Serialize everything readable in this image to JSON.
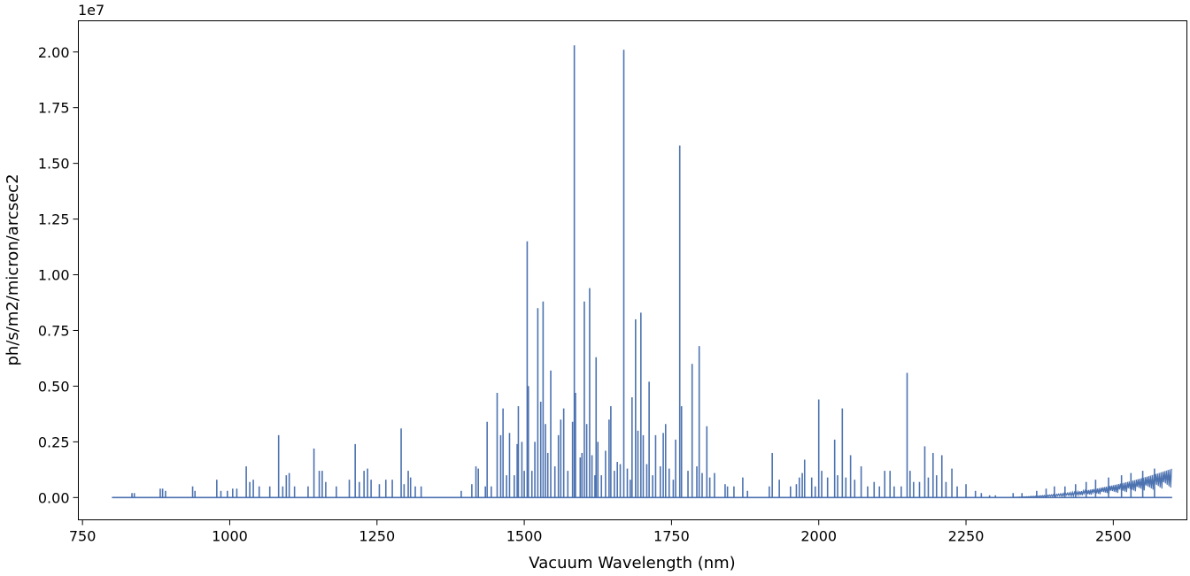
{
  "chart_data": {
    "type": "line",
    "title": "",
    "xlabel": "Vacuum Wavelength (nm)",
    "ylabel": "ph/s/m2/micron/arcsec2",
    "y_offset_label": "1e7",
    "y_scale_factor": 10000000,
    "xlim": [
      743,
      2625
    ],
    "ylim": [
      -0.1,
      2.14
    ],
    "x_ticks": [
      750,
      1000,
      1250,
      1500,
      1750,
      2000,
      2250,
      2500
    ],
    "x_tick_labels": [
      "750",
      "1000",
      "1250",
      "1500",
      "1750",
      "2000",
      "2250",
      "2500"
    ],
    "y_ticks": [
      0.0,
      0.25,
      0.5,
      0.75,
      1.0,
      1.25,
      1.5,
      1.75,
      2.0
    ],
    "y_tick_labels": [
      "0.00",
      "0.25",
      "0.50",
      "0.75",
      "1.00",
      "1.25",
      "1.50",
      "1.75",
      "2.00"
    ],
    "grid": false,
    "series": [
      {
        "color": "#4c72b0",
        "x_range": [
          800,
          2600
        ],
        "emission_lines": [
          [
            834,
            0.02
          ],
          [
            838,
            0.02
          ],
          [
            882,
            0.04
          ],
          [
            886,
            0.04
          ],
          [
            891,
            0.03
          ],
          [
            937,
            0.05
          ],
          [
            941,
            0.03
          ],
          [
            978,
            0.08
          ],
          [
            985,
            0.03
          ],
          [
            996,
            0.03
          ],
          [
            1005,
            0.04
          ],
          [
            1012,
            0.04
          ],
          [
            1028,
            0.14
          ],
          [
            1034,
            0.07
          ],
          [
            1040,
            0.08
          ],
          [
            1050,
            0.05
          ],
          [
            1068,
            0.05
          ],
          [
            1083,
            0.28
          ],
          [
            1090,
            0.05
          ],
          [
            1096,
            0.1
          ],
          [
            1101,
            0.11
          ],
          [
            1110,
            0.05
          ],
          [
            1133,
            0.05
          ],
          [
            1143,
            0.22
          ],
          [
            1152,
            0.12
          ],
          [
            1157,
            0.12
          ],
          [
            1163,
            0.07
          ],
          [
            1181,
            0.05
          ],
          [
            1203,
            0.08
          ],
          [
            1213,
            0.24
          ],
          [
            1220,
            0.07
          ],
          [
            1228,
            0.12
          ],
          [
            1234,
            0.13
          ],
          [
            1240,
            0.08
          ],
          [
            1254,
            0.06
          ],
          [
            1265,
            0.08
          ],
          [
            1276,
            0.08
          ],
          [
            1291,
            0.31
          ],
          [
            1296,
            0.06
          ],
          [
            1303,
            0.12
          ],
          [
            1307,
            0.09
          ],
          [
            1315,
            0.05
          ],
          [
            1325,
            0.05
          ],
          [
            1393,
            0.03
          ],
          [
            1411,
            0.06
          ],
          [
            1418,
            0.14
          ],
          [
            1422,
            0.13
          ],
          [
            1434,
            0.05
          ],
          [
            1437,
            0.34
          ],
          [
            1444,
            0.05
          ],
          [
            1454,
            0.47
          ],
          [
            1460,
            0.28
          ],
          [
            1464,
            0.4
          ],
          [
            1470,
            0.1
          ],
          [
            1475,
            0.29
          ],
          [
            1483,
            0.1
          ],
          [
            1488,
            0.24
          ],
          [
            1490,
            0.41
          ],
          [
            1496,
            0.25
          ],
          [
            1500,
            0.12
          ],
          [
            1505,
            1.15
          ],
          [
            1507,
            0.5
          ],
          [
            1513,
            0.12
          ],
          [
            1518,
            0.25
          ],
          [
            1523,
            0.85
          ],
          [
            1528,
            0.43
          ],
          [
            1532,
            0.88
          ],
          [
            1536,
            0.33
          ],
          [
            1540,
            0.2
          ],
          [
            1545,
            0.57
          ],
          [
            1552,
            0.14
          ],
          [
            1558,
            0.28
          ],
          [
            1562,
            0.35
          ],
          [
            1567,
            0.4
          ],
          [
            1574,
            0.12
          ],
          [
            1582,
            0.34
          ],
          [
            1585,
            2.03
          ],
          [
            1587,
            0.47
          ],
          [
            1595,
            0.18
          ],
          [
            1598,
            0.2
          ],
          [
            1602,
            0.88
          ],
          [
            1606,
            0.33
          ],
          [
            1611,
            0.94
          ],
          [
            1615,
            0.19
          ],
          [
            1620,
            0.1
          ],
          [
            1622,
            0.63
          ],
          [
            1625,
            0.25
          ],
          [
            1631,
            0.1
          ],
          [
            1638,
            0.21
          ],
          [
            1644,
            0.35
          ],
          [
            1647,
            0.41
          ],
          [
            1653,
            0.12
          ],
          [
            1658,
            0.16
          ],
          [
            1663,
            0.15
          ],
          [
            1669,
            2.01
          ],
          [
            1675,
            0.13
          ],
          [
            1680,
            0.08
          ],
          [
            1683,
            0.45
          ],
          [
            1689,
            0.8
          ],
          [
            1693,
            0.3
          ],
          [
            1698,
            0.83
          ],
          [
            1702,
            0.28
          ],
          [
            1708,
            0.15
          ],
          [
            1712,
            0.52
          ],
          [
            1718,
            0.1
          ],
          [
            1723,
            0.28
          ],
          [
            1731,
            0.14
          ],
          [
            1736,
            0.29
          ],
          [
            1740,
            0.33
          ],
          [
            1746,
            0.13
          ],
          [
            1753,
            0.08
          ],
          [
            1757,
            0.26
          ],
          [
            1764,
            1.58
          ],
          [
            1767,
            0.41
          ],
          [
            1778,
            0.12
          ],
          [
            1785,
            0.6
          ],
          [
            1793,
            0.14
          ],
          [
            1797,
            0.68
          ],
          [
            1802,
            0.11
          ],
          [
            1810,
            0.32
          ],
          [
            1815,
            0.09
          ],
          [
            1823,
            0.11
          ],
          [
            1841,
            0.06
          ],
          [
            1845,
            0.05
          ],
          [
            1856,
            0.05
          ],
          [
            1871,
            0.09
          ],
          [
            1879,
            0.03
          ],
          [
            1916,
            0.05
          ],
          [
            1921,
            0.2
          ],
          [
            1933,
            0.08
          ],
          [
            1952,
            0.05
          ],
          [
            1962,
            0.06
          ],
          [
            1967,
            0.09
          ],
          [
            1972,
            0.11
          ],
          [
            1976,
            0.17
          ],
          [
            1988,
            0.09
          ],
          [
            1994,
            0.05
          ],
          [
            2000,
            0.44
          ],
          [
            2005,
            0.12
          ],
          [
            2015,
            0.09
          ],
          [
            2027,
            0.26
          ],
          [
            2032,
            0.1
          ],
          [
            2040,
            0.4
          ],
          [
            2046,
            0.09
          ],
          [
            2054,
            0.19
          ],
          [
            2061,
            0.08
          ],
          [
            2072,
            0.14
          ],
          [
            2083,
            0.05
          ],
          [
            2094,
            0.07
          ],
          [
            2103,
            0.05
          ],
          [
            2112,
            0.12
          ],
          [
            2121,
            0.12
          ],
          [
            2128,
            0.05
          ],
          [
            2140,
            0.05
          ],
          [
            2150,
            0.56
          ],
          [
            2155,
            0.12
          ],
          [
            2161,
            0.07
          ],
          [
            2171,
            0.07
          ],
          [
            2180,
            0.23
          ],
          [
            2186,
            0.09
          ],
          [
            2194,
            0.2
          ],
          [
            2200,
            0.1
          ],
          [
            2209,
            0.19
          ],
          [
            2216,
            0.07
          ],
          [
            2226,
            0.13
          ],
          [
            2235,
            0.05
          ],
          [
            2250,
            0.06
          ],
          [
            2266,
            0.03
          ],
          [
            2276,
            0.02
          ],
          [
            2290,
            0.01
          ],
          [
            2300,
            0.01
          ],
          [
            2330,
            0.02
          ],
          [
            2345,
            0.02
          ],
          [
            2370,
            0.03
          ],
          [
            2386,
            0.04
          ],
          [
            2400,
            0.05
          ],
          [
            2418,
            0.05
          ],
          [
            2436,
            0.06
          ],
          [
            2454,
            0.07
          ],
          [
            2470,
            0.08
          ],
          [
            2492,
            0.09
          ],
          [
            2514,
            0.1
          ],
          [
            2530,
            0.11
          ],
          [
            2550,
            0.12
          ],
          [
            2570,
            0.13
          ]
        ],
        "thermal_continuum": {
          "onset_x": 2290,
          "end_x": 2600,
          "end_value": 0.13
        }
      }
    ]
  }
}
